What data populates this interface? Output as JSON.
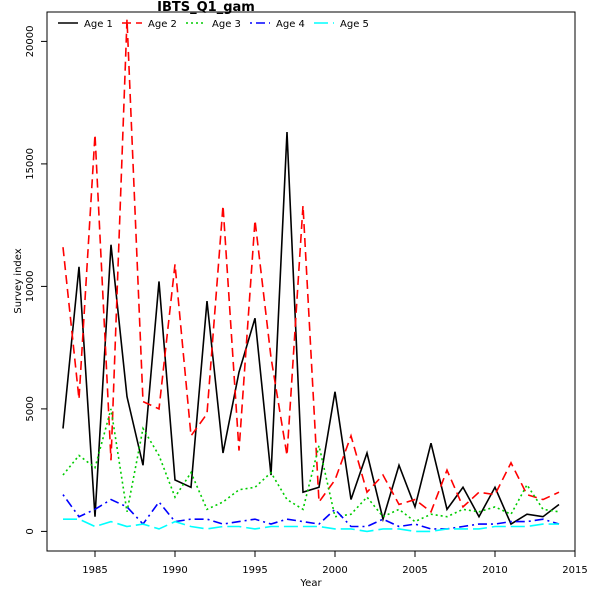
{
  "chart_data": {
    "type": "line",
    "title": "IBTS_Q1_gam",
    "xlabel": "Year",
    "ylabel": "Survey index",
    "xlim": [
      1982,
      2015
    ],
    "ylim": [
      -800,
      21200
    ],
    "x_ticks": [
      1985,
      1990,
      1995,
      2000,
      2005,
      2010,
      2015
    ],
    "y_ticks": [
      0,
      5000,
      10000,
      15000,
      20000
    ],
    "grid": false,
    "legend_position": "top",
    "x": [
      1983,
      1984,
      1985,
      1986,
      1987,
      1988,
      1989,
      1990,
      1991,
      1992,
      1993,
      1994,
      1995,
      1996,
      1997,
      1998,
      1999,
      2000,
      2001,
      2002,
      2003,
      2004,
      2005,
      2006,
      2007,
      2008,
      2009,
      2010,
      2011,
      2012,
      2013,
      2014
    ],
    "series": [
      {
        "name": "Age 1",
        "color": "#000000",
        "dash": "solid",
        "values": [
          4200,
          10800,
          600,
          11700,
          5500,
          2700,
          10200,
          2100,
          1800,
          9400,
          3200,
          6500,
          8700,
          2300,
          16300,
          1600,
          1800,
          5700,
          1300,
          3200,
          500,
          2700,
          1000,
          3600,
          900,
          1800,
          600,
          1800,
          300,
          700,
          600,
          1100
        ]
      },
      {
        "name": "Age 2",
        "color": "#ff0000",
        "dash": "dashed",
        "values": [
          11600,
          5400,
          16200,
          2900,
          20900,
          5300,
          5000,
          10900,
          3900,
          4800,
          13300,
          3300,
          12700,
          7100,
          3100,
          13300,
          1200,
          2100,
          3900,
          1600,
          2300,
          1100,
          1300,
          800,
          2500,
          1000,
          1600,
          1500,
          2800,
          1500,
          1300,
          1600
        ]
      },
      {
        "name": "Age 3",
        "color": "#00cc00",
        "dash": "dotted",
        "values": [
          2300,
          3100,
          2600,
          5000,
          800,
          4200,
          3100,
          1400,
          2400,
          900,
          1200,
          1700,
          1800,
          2400,
          1300,
          900,
          3500,
          600,
          700,
          1400,
          600,
          900,
          400,
          700,
          600,
          900,
          800,
          1000,
          700,
          1900,
          900,
          800
        ]
      },
      {
        "name": "Age 4",
        "color": "#0000ff",
        "dash": "dotdash",
        "values": [
          1500,
          600,
          900,
          1300,
          1000,
          300,
          1200,
          400,
          500,
          500,
          300,
          400,
          500,
          300,
          500,
          400,
          300,
          900,
          200,
          200,
          500,
          200,
          300,
          100,
          100,
          200,
          300,
          300,
          400,
          400,
          500,
          300
        ]
      },
      {
        "name": "Age 5",
        "color": "#00ffff",
        "dash": "longdash",
        "values": [
          500,
          500,
          200,
          400,
          200,
          300,
          100,
          400,
          200,
          100,
          200,
          200,
          100,
          200,
          200,
          200,
          200,
          100,
          100,
          0,
          100,
          100,
          0,
          0,
          100,
          100,
          100,
          200,
          200,
          200,
          300,
          300
        ]
      }
    ]
  }
}
